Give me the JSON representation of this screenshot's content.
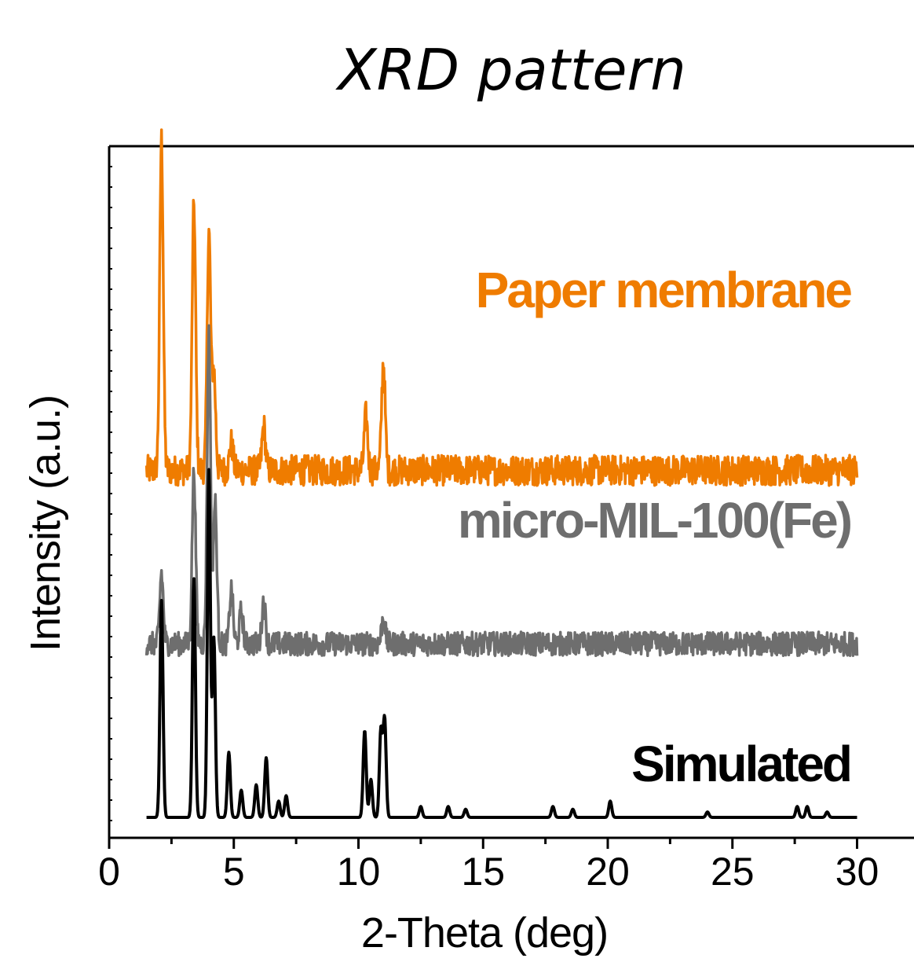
{
  "chart_data": {
    "type": "line",
    "title": "XRD pattern",
    "xlabel": "2-Theta (deg)",
    "ylabel": "Intensity (a.u.)",
    "xlim": [
      0,
      31
    ],
    "x_ticks": [
      0,
      5,
      10,
      15,
      20,
      25,
      30
    ],
    "x_minor_step": 2.5,
    "y_ticks_shown": false,
    "grid": false,
    "legend": "none",
    "x_range_measured": [
      1.5,
      30
    ],
    "series": [
      {
        "name": "Paper membrane",
        "color": "#ef7c00",
        "baseline": 0.64,
        "noise": 0.028,
        "peaks": [
          [
            2.1,
            0.61
          ],
          [
            3.4,
            0.49
          ],
          [
            4.0,
            0.44
          ],
          [
            4.2,
            0.18
          ],
          [
            4.9,
            0.05
          ],
          [
            6.2,
            0.08
          ],
          [
            10.3,
            0.1
          ],
          [
            11.0,
            0.2
          ]
        ]
      },
      {
        "name": "micro-MIL-100(Fe)",
        "color": "#6e6e6e",
        "baseline": 0.32,
        "noise": 0.022,
        "peaks": [
          [
            2.1,
            0.13
          ],
          [
            3.4,
            0.32
          ],
          [
            4.0,
            0.57
          ],
          [
            4.25,
            0.26
          ],
          [
            4.9,
            0.1
          ],
          [
            5.3,
            0.06
          ],
          [
            6.2,
            0.08
          ],
          [
            11.0,
            0.05
          ]
        ]
      },
      {
        "name": "Simulated",
        "color": "#000000",
        "baseline": 0.0,
        "noise": 0.0,
        "peaks": [
          [
            2.1,
            0.4
          ],
          [
            3.4,
            0.44
          ],
          [
            4.0,
            0.64
          ],
          [
            4.2,
            0.33
          ],
          [
            4.8,
            0.12
          ],
          [
            5.3,
            0.05
          ],
          [
            5.9,
            0.06
          ],
          [
            6.3,
            0.11
          ],
          [
            6.8,
            0.03
          ],
          [
            7.1,
            0.04
          ],
          [
            10.25,
            0.16
          ],
          [
            10.5,
            0.07
          ],
          [
            10.9,
            0.16
          ],
          [
            11.05,
            0.18
          ],
          [
            12.5,
            0.02
          ],
          [
            13.6,
            0.02
          ],
          [
            14.3,
            0.015
          ],
          [
            17.8,
            0.02
          ],
          [
            18.6,
            0.015
          ],
          [
            20.1,
            0.03
          ],
          [
            24.0,
            0.01
          ],
          [
            27.6,
            0.02
          ],
          [
            28.0,
            0.02
          ],
          [
            28.8,
            0.01
          ]
        ]
      }
    ]
  }
}
